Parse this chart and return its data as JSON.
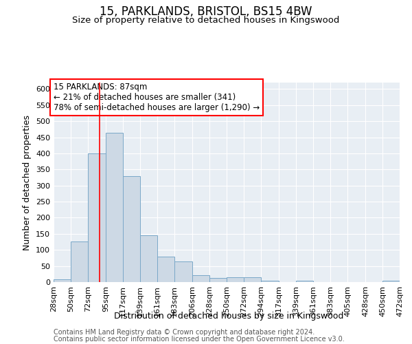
{
  "title": "15, PARKLANDS, BRISTOL, BS15 4BW",
  "subtitle": "Size of property relative to detached houses in Kingswood",
  "xlabel": "Distribution of detached houses by size in Kingswood",
  "ylabel": "Number of detached properties",
  "annotation_line1": "15 PARKLANDS: 87sqm",
  "annotation_line2": "← 21% of detached houses are smaller (341)",
  "annotation_line3": "78% of semi-detached houses are larger (1,290) →",
  "bin_edges": [
    28,
    50,
    72,
    95,
    117,
    139,
    161,
    183,
    206,
    228,
    250,
    272,
    294,
    317,
    339,
    361,
    383,
    405,
    428,
    450,
    472
  ],
  "bin_labels": [
    "28sqm",
    "50sqm",
    "72sqm",
    "95sqm",
    "117sqm",
    "139sqm",
    "161sqm",
    "183sqm",
    "206sqm",
    "228sqm",
    "250sqm",
    "272sqm",
    "294sqm",
    "317sqm",
    "339sqm",
    "361sqm",
    "383sqm",
    "405sqm",
    "428sqm",
    "450sqm",
    "472sqm"
  ],
  "counts": [
    8,
    127,
    400,
    463,
    330,
    145,
    80,
    65,
    22,
    12,
    16,
    16,
    5,
    0,
    5,
    0,
    0,
    0,
    0,
    5
  ],
  "bar_face_color": "#cdd9e5",
  "bar_edge_color": "#7aa8c8",
  "red_line_x": 87,
  "ylim": [
    0,
    620
  ],
  "yticks": [
    0,
    50,
    100,
    150,
    200,
    250,
    300,
    350,
    400,
    450,
    500,
    550,
    600
  ],
  "plot_bg_color": "#e8eef4",
  "grid_color": "#ffffff",
  "footer_line1": "Contains HM Land Registry data © Crown copyright and database right 2024.",
  "footer_line2": "Contains public sector information licensed under the Open Government Licence v3.0."
}
